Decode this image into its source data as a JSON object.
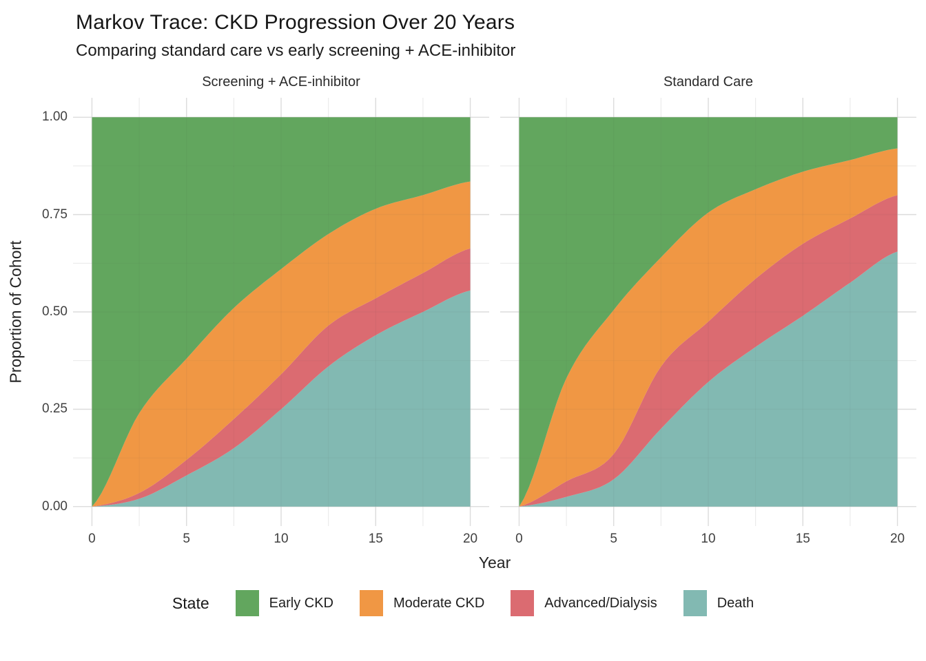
{
  "chart_data": {
    "type": "area",
    "title": "Markov Trace: CKD Progression Over 20 Years",
    "subtitle": "Comparing standard care vs early screening + ACE-inhibitor",
    "xlabel": "Year",
    "ylabel": "Proportion of Cohort",
    "legend_title": "State",
    "xlim": [
      0,
      20
    ],
    "ylim": [
      0,
      1
    ],
    "x_tick_labels": [
      "0",
      "5",
      "10",
      "15",
      "20"
    ],
    "x_tick_values": [
      0,
      5,
      10,
      15,
      20
    ],
    "x_minor_values": [
      2.5,
      7.5,
      12.5,
      17.5
    ],
    "y_tick_labels": [
      "0.00",
      "0.25",
      "0.50",
      "0.75",
      "1.00"
    ],
    "y_tick_values": [
      0,
      0.25,
      0.5,
      0.75,
      1.0
    ],
    "y_minor_values": [
      0.125,
      0.375,
      0.625,
      0.875
    ],
    "grid": "on",
    "legend_position": "bottom",
    "states": [
      "Early CKD",
      "Moderate CKD",
      "Advanced/Dialysis",
      "Death"
    ],
    "stack_order": [
      "Death",
      "Advanced/Dialysis",
      "Moderate CKD",
      "Early CKD"
    ],
    "colors": {
      "Early CKD": "#62A65E",
      "Moderate CKD": "#F09744",
      "Advanced/Dialysis": "#DB6B71",
      "Death": "#82B9B2"
    },
    "style": {
      "panel_bg": "#FFFFFF",
      "grid_major": "#E4E4E4",
      "grid_minor": "#F2F2F2",
      "grid_overlay": "rgba(70,70,70,0.05)"
    },
    "facets": [
      {
        "label": "Screening + ACE-inhibitor",
        "x": [
          0,
          2.5,
          5,
          7.5,
          10,
          12.5,
          15,
          17.5,
          20
        ],
        "series": {
          "Death": [
            0,
            0.02,
            0.08,
            0.15,
            0.25,
            0.36,
            0.44,
            0.5,
            0.555
          ],
          "Advanced/Dialysis": [
            0,
            0.015,
            0.04,
            0.075,
            0.09,
            0.105,
            0.095,
            0.1,
            0.108
          ],
          "Moderate CKD": [
            0,
            0.205,
            0.26,
            0.285,
            0.27,
            0.235,
            0.23,
            0.2,
            0.172
          ],
          "Early CKD": [
            1,
            0.76,
            0.62,
            0.49,
            0.39,
            0.3,
            0.235,
            0.2,
            0.165
          ]
        }
      },
      {
        "label": "Standard Care",
        "x": [
          0,
          2.5,
          5,
          7.5,
          10,
          12.5,
          15,
          17.5,
          20
        ],
        "series": {
          "Death": [
            0,
            0.025,
            0.07,
            0.2,
            0.32,
            0.41,
            0.49,
            0.575,
            0.655
          ],
          "Advanced/Dialysis": [
            0,
            0.04,
            0.065,
            0.16,
            0.155,
            0.175,
            0.185,
            0.165,
            0.145
          ],
          "Moderate CKD": [
            0,
            0.265,
            0.37,
            0.28,
            0.28,
            0.23,
            0.185,
            0.15,
            0.12
          ],
          "Early CKD": [
            1,
            0.67,
            0.495,
            0.36,
            0.245,
            0.185,
            0.14,
            0.11,
            0.08
          ]
        }
      }
    ]
  }
}
